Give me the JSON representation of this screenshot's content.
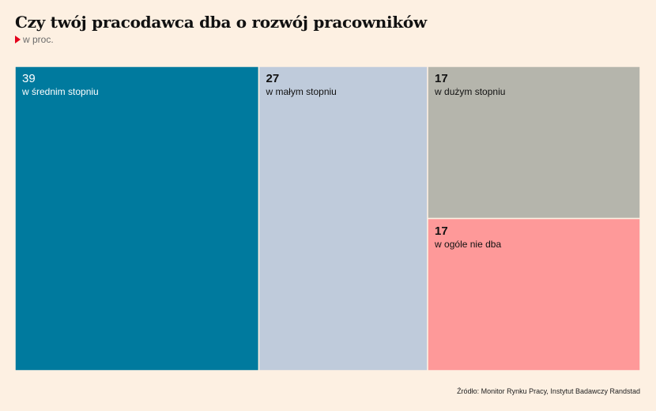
{
  "title": "Czy twój pracodawca dba o rozwój pracowników",
  "subtitle": "w proc.",
  "source": "Źródło: Monitor Rynku Pracy, Instytut Badawczy Randstad",
  "colors": {
    "background": "#fdf0e2",
    "accent_marker": "#e3001b"
  },
  "chart_data": {
    "type": "treemap",
    "unit": "w proc.",
    "items": [
      {
        "label": "w średnim stopniu",
        "value": 39,
        "value_label": "39",
        "color": "#007a9e",
        "text_color": "#ffffff"
      },
      {
        "label": "w małym stopniu",
        "value": 27,
        "value_label": "27",
        "color": "#bfcbdb",
        "text_color": "#111111"
      },
      {
        "label": "w dużym stopniu",
        "value": 17,
        "value_label": "17",
        "color": "#b5b5ac",
        "text_color": "#111111"
      },
      {
        "label": "w ogóle nie dba",
        "value": 17,
        "value_label": "17",
        "color": "#fe9999",
        "text_color": "#111111"
      }
    ]
  }
}
